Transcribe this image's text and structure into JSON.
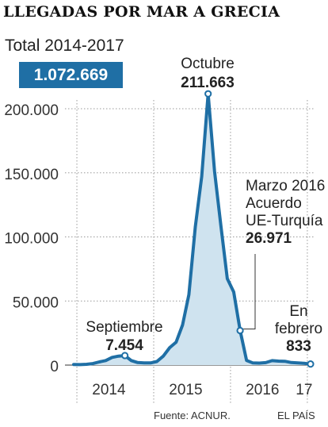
{
  "title": "LLEGADAS POR MAR A GRECIA",
  "total": {
    "label": "Total 2014-2017",
    "value": "1.072.669"
  },
  "source": "Fuente: ACNUR.",
  "brand": "EL PAÍS",
  "colors": {
    "line": "#1f6fa5",
    "area": "#cfe3ef",
    "grid": "#999999",
    "accent": "#1f6fa5"
  },
  "chart_data": {
    "type": "area",
    "title": "LLEGADAS POR MAR A GRECIA",
    "xlabel": "",
    "ylabel": "",
    "ylim": [
      0,
      200000
    ],
    "yticks": [
      {
        "value": 0,
        "label": "0"
      },
      {
        "value": 50000,
        "label": "50.000"
      },
      {
        "value": 100000,
        "label": "100.000"
      },
      {
        "value": 150000,
        "label": "150.000"
      },
      {
        "value": 200000,
        "label": "200.000"
      }
    ],
    "xticks": [
      {
        "month": 6.5,
        "label": "2014"
      },
      {
        "month": 18.5,
        "label": "2015"
      },
      {
        "month": 30.5,
        "label": "2016"
      },
      {
        "month": 37,
        "label": "17"
      }
    ],
    "year_dividers": [
      1,
      13,
      25,
      37
    ],
    "x": [
      "2014-01",
      "2014-02",
      "2014-03",
      "2014-04",
      "2014-05",
      "2014-06",
      "2014-07",
      "2014-08",
      "2014-09",
      "2014-10",
      "2014-11",
      "2014-12",
      "2015-01",
      "2015-02",
      "2015-03",
      "2015-04",
      "2015-05",
      "2015-06",
      "2015-07",
      "2015-08",
      "2015-09",
      "2015-10",
      "2015-11",
      "2015-12",
      "2016-01",
      "2016-02",
      "2016-03",
      "2016-04",
      "2016-05",
      "2016-06",
      "2016-07",
      "2016-08",
      "2016-09",
      "2016-10",
      "2016-11",
      "2016-12",
      "2017-01",
      "2017-02"
    ],
    "values": [
      500,
      400,
      600,
      1200,
      2500,
      3500,
      6000,
      7000,
      7454,
      3500,
      2000,
      1700,
      1700,
      2800,
      7000,
      13600,
      17900,
      31300,
      54900,
      107800,
      147100,
      211663,
      151200,
      108700,
      67400,
      57000,
      26971,
      3650,
      1700,
      1550,
      1900,
      3450,
      3100,
      2970,
      1990,
      1660,
      1390,
      833
    ],
    "annotations": [
      {
        "index": 8,
        "lines": [
          "Septiembre"
        ],
        "value": "7.454"
      },
      {
        "index": 21,
        "lines": [
          "Octubre"
        ],
        "value": "211.663"
      },
      {
        "index": 26,
        "lines": [
          "Marzo 2016",
          "Acuerdo",
          "UE-Turquía"
        ],
        "value": "26.971"
      },
      {
        "index": 37,
        "lines": [
          "En",
          "febrero"
        ],
        "value": "833"
      }
    ]
  }
}
